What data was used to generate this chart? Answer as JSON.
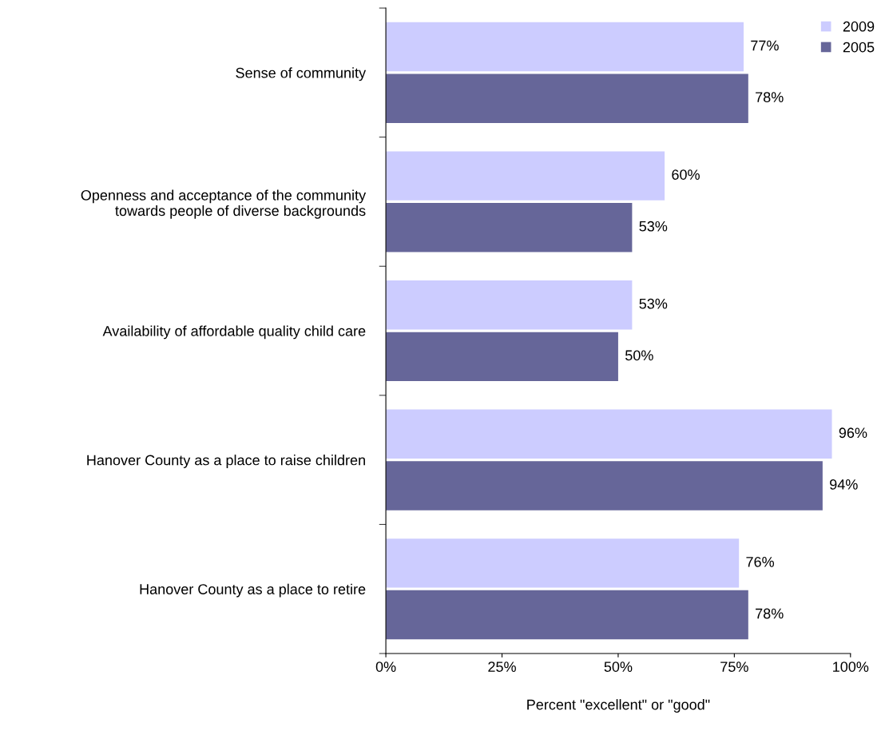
{
  "chart_data": {
    "type": "bar",
    "orientation": "horizontal",
    "xlabel": "Percent \"excellent\" or \"good\"",
    "categories": [
      "Sense of community",
      "Openness and acceptance of the community\ntowards people of diverse backgrounds",
      "Availability of affordable quality child care",
      "Hanover County as a place to raise children",
      "Hanover County as a place to retire"
    ],
    "series": [
      {
        "name": "2009",
        "color": "#ccccff",
        "values": [
          77,
          60,
          53,
          96,
          76
        ],
        "value_labels": [
          "77%",
          "60%",
          "53%",
          "96%",
          "76%"
        ]
      },
      {
        "name": "2005",
        "color": "#666699",
        "values": [
          78,
          53,
          50,
          94,
          78
        ],
        "value_labels": [
          "78%",
          "53%",
          "50%",
          "94%",
          "78%"
        ]
      }
    ],
    "xlim": [
      0,
      100
    ],
    "xticks": [
      {
        "value": 0,
        "label": "0%"
      },
      {
        "value": 25,
        "label": "25%"
      },
      {
        "value": 50,
        "label": "50%"
      },
      {
        "value": 75,
        "label": "75%"
      },
      {
        "value": 100,
        "label": "100%"
      }
    ],
    "grid": false,
    "legend": "top right"
  }
}
